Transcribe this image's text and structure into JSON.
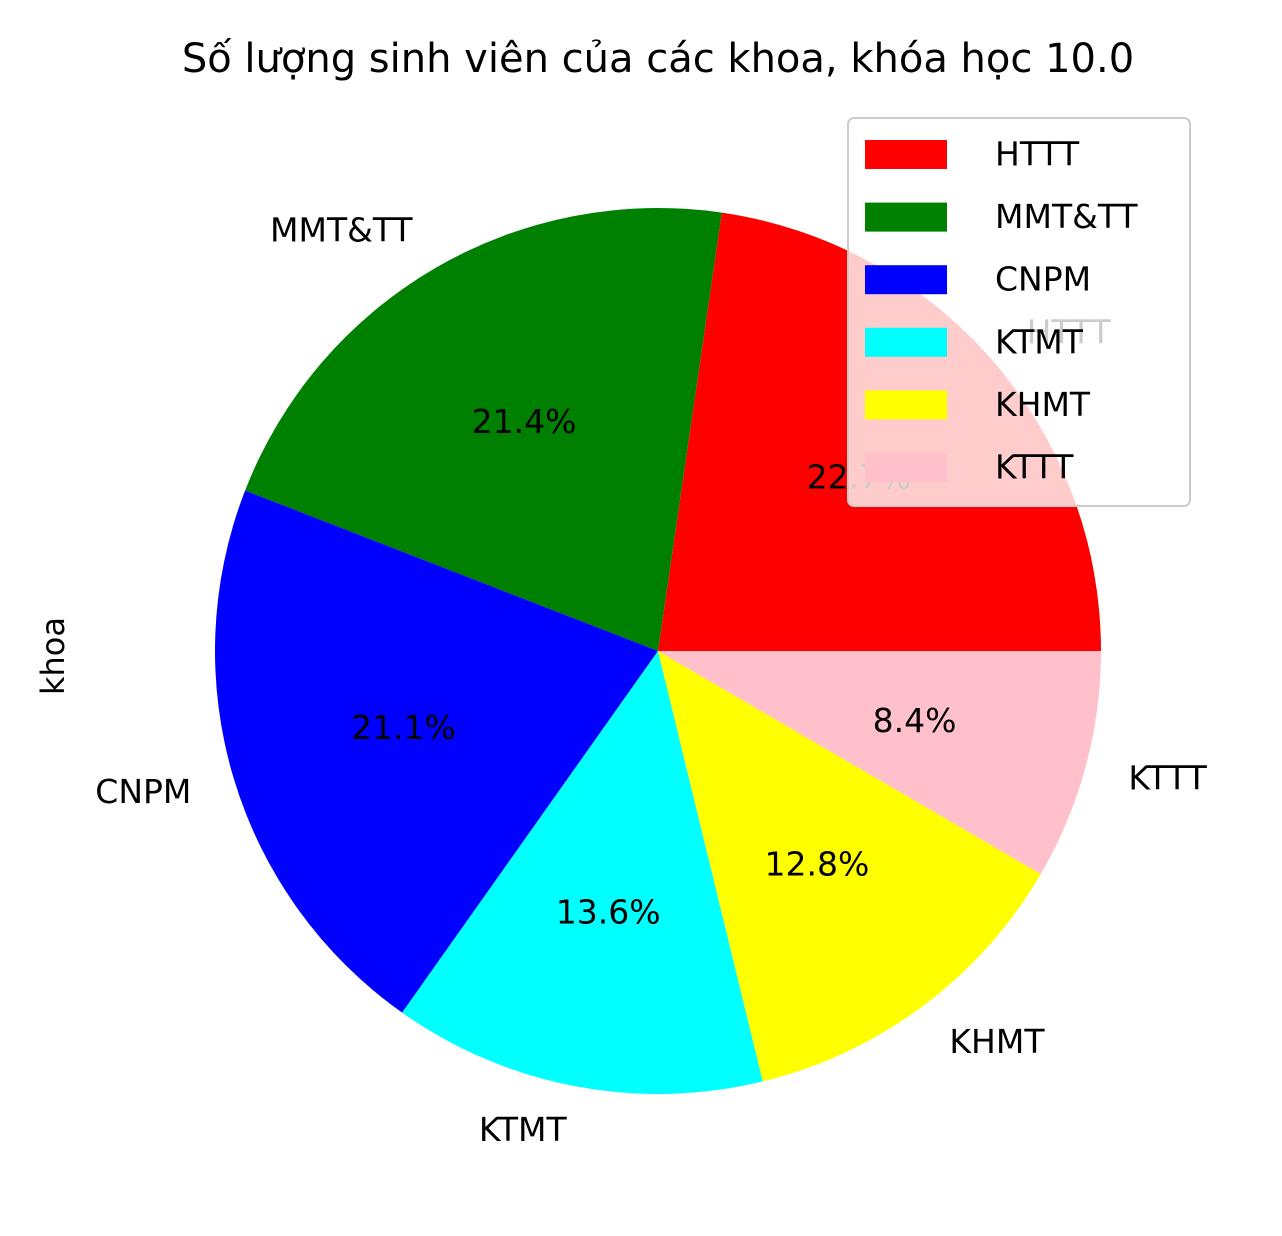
{
  "chart_data": {
    "type": "pie",
    "title": "Số lượng sinh viên của các khoa, khóa học 10.0",
    "ylabel": "khoa",
    "start_angle_deg": 0,
    "direction": "counterclockwise",
    "categories": [
      "HTTT",
      "MMT&TT",
      "CNPM",
      "KTMT",
      "KHMT",
      "KTTT"
    ],
    "values": [
      22.7,
      21.4,
      21.1,
      13.6,
      12.8,
      8.4
    ],
    "value_labels": [
      "22.7%",
      "21.4%",
      "21.1%",
      "13.6%",
      "12.8%",
      "8.4%"
    ],
    "colors": [
      "#ff0000",
      "#008000",
      "#0000ff",
      "#00ffff",
      "#ffff00",
      "#ffc0cb"
    ],
    "legend": {
      "location": "upper right",
      "entries": [
        "HTTT",
        "MMT&TT",
        "CNPM",
        "KTMT",
        "KHMT",
        "KTTT"
      ]
    }
  }
}
